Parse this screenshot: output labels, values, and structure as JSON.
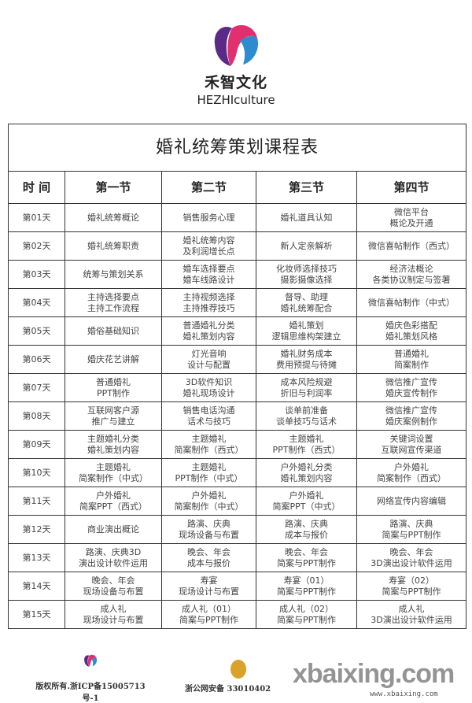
{
  "brand": {
    "name_cn": "禾智文化",
    "name_en": "HEZHIculture",
    "colors": {
      "purple": "#5b2a86",
      "pink": "#e0306e",
      "blue": "#2e8bd0"
    }
  },
  "table": {
    "title": "婚礼统筹策划课程表",
    "headers": [
      "时 间",
      "第一节",
      "第二节",
      "第三节",
      "第四节"
    ],
    "rows": [
      [
        "第01天",
        "婚礼统筹概论",
        "销售服务心理",
        "婚礼道具认知",
        "微信平台\n概论及开通"
      ],
      [
        "第02天",
        "婚礼统筹职责",
        "婚礼统筹内容\n及利润增长点",
        "新人定亲解析",
        "微信喜帖制作（西式）"
      ],
      [
        "第03天",
        "统筹与策划关系",
        "婚车选择要点\n婚车线路设计",
        "化妆师选择技巧\n摄影摄像选择",
        "经济法概论\n各类协议制定与签署"
      ],
      [
        "第04天",
        "主持选择要点\n主持工作流程",
        "主持视频选择\n主持推荐技巧",
        "督导、助理\n婚礼统筹配合",
        "微信喜帖制作（中式）"
      ],
      [
        "第05天",
        "婚俗基础知识",
        "普通婚礼分类\n婚礼策划内容",
        "婚礼策划\n逻辑思维构架建立",
        "婚庆色彩搭配\n婚礼策划风格"
      ],
      [
        "第06天",
        "婚庆花艺讲解",
        "灯光音响\n设计与配置",
        "婚礼财务成本\n费用预提与待摊",
        "普通婚礼\n简案制作"
      ],
      [
        "第07天",
        "普通婚礼\nPPT制作",
        "3D软件知识\n婚礼现场设计",
        "成本风险规避\n折旧与利润率",
        "微信推广宣传\n婚庆宣传制作"
      ],
      [
        "第08天",
        "互联网客户源\n推广与建立",
        "销售电话沟通\n话术与技巧",
        "谈单前准备\n谈单技巧与话术",
        "微信推广宣传\n婚庆案例制作"
      ],
      [
        "第09天",
        "主题婚礼分类\n婚礼策划内容",
        "主题婚礼\n简案制作（西式）",
        "主题婚礼\nPPT制作（西式）",
        "关键词设置\n互联网宣传渠道"
      ],
      [
        "第10天",
        "主题婚礼\n简案制作（中式）",
        "主题婚礼\nPPT制作（中式）",
        "户外婚礼分类\n婚礼策划内容",
        "户外婚礼\n简案制作（西式）"
      ],
      [
        "第11天",
        "户外婚礼\n简案PPT（西式）",
        "户外婚礼\n简案制作（中式）",
        "户外婚礼\n简案PPT（中式）",
        "网络宣传内容编辑"
      ],
      [
        "第12天",
        "商业演出概论",
        "路演、庆典\n现场设备与布置",
        "路演、庆典\n成本与报价",
        "路演、庆典\n简案与PPT制作"
      ],
      [
        "第13天",
        "路演、庆典3D\n演出设计软件运用",
        "晚会、年会\n成本与报价",
        "晚会、年会\n简案与PPT制作",
        "晚会、年会\n3D演出设计软件运用"
      ],
      [
        "第14天",
        "晚会、年会\n现场设备与布置",
        "寿宴\n现场设计与布置",
        "寿宴（01）\n简案与PPT制作",
        "寿宴（02）\n简案与PPT制作"
      ],
      [
        "第15天",
        "成人礼\n现场设计与布置",
        "成人礼（01）\n简案与PPT制作",
        "成人礼（02）\n简案与PPT制作",
        "成人礼\n3D演出设计软件运用"
      ]
    ]
  },
  "footer": {
    "copyright": "版权所有.浙ICP备15005713号-1",
    "police": "浙公网安备 33010402",
    "watermark": "xbaixing.com",
    "watermark_url": "www.xbaixing.com"
  }
}
